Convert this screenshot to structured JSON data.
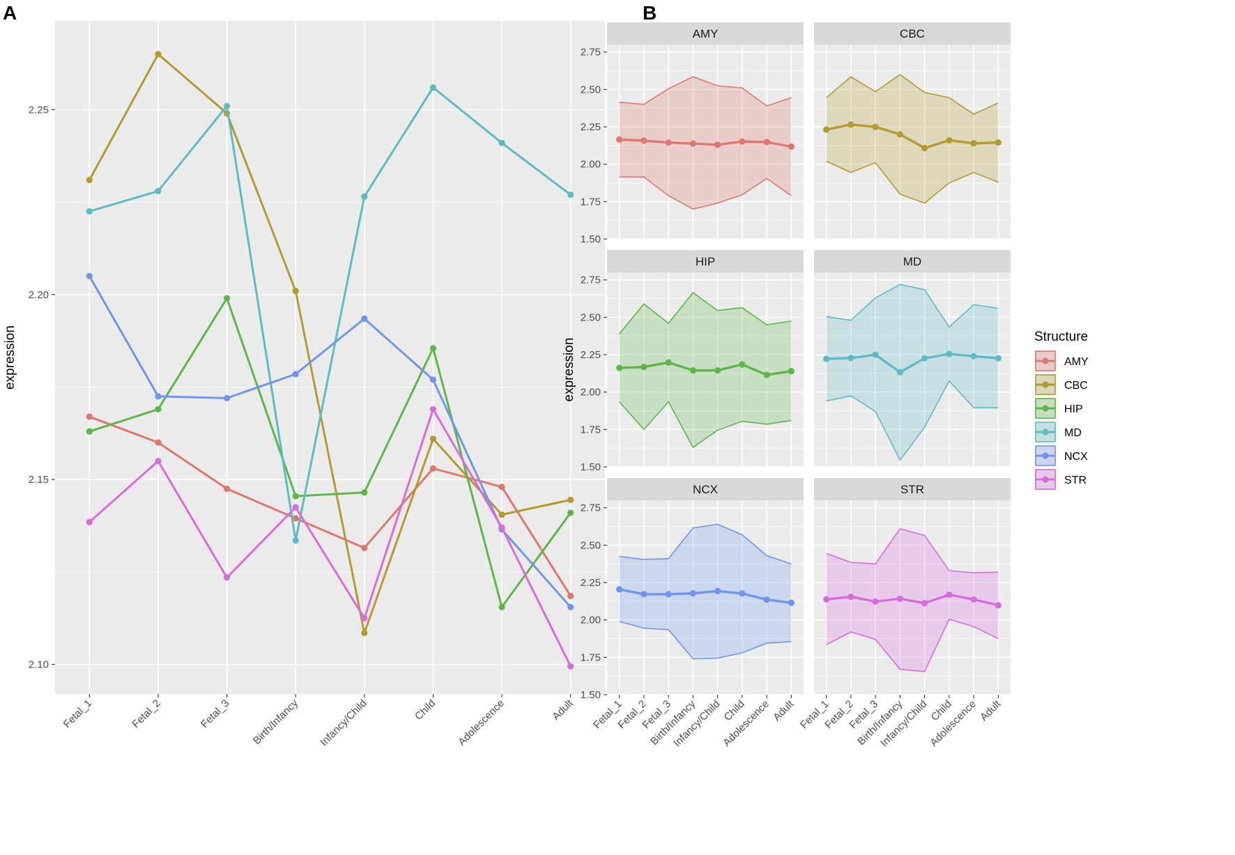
{
  "colors": {
    "AMY": "#E0766D",
    "CBC": "#B39B2C",
    "HIP": "#5CB846",
    "MD": "#5CBCC4",
    "NCX": "#6F96EE",
    "STR": "#D96BDE"
  },
  "chart_data": [
    {
      "panel_label": "A",
      "type": "line",
      "title": "",
      "xlabel": "",
      "ylabel": "expression",
      "categories": [
        "Fetal_1",
        "Fetal_2",
        "Fetal_3",
        "Birth/Infancy",
        "Infancy/Child",
        "Child",
        "Adolescence",
        "Adult"
      ],
      "ylim": [
        2.092,
        2.274
      ],
      "yticks": [
        2.1,
        2.15,
        2.2,
        2.25
      ],
      "ytick_labels": [
        "2.10",
        "2.15",
        "2.20",
        "2.25"
      ],
      "grid": true,
      "series": [
        {
          "name": "AMY",
          "values": [
            2.167,
            2.16,
            2.1475,
            2.1395,
            2.1315,
            2.153,
            2.148,
            2.1185
          ]
        },
        {
          "name": "CBC",
          "values": [
            2.231,
            2.265,
            2.249,
            2.201,
            2.1085,
            2.161,
            2.1405,
            2.1445
          ]
        },
        {
          "name": "HIP",
          "values": [
            2.163,
            2.169,
            2.199,
            2.1455,
            2.1465,
            2.1855,
            2.1155,
            2.141
          ]
        },
        {
          "name": "MD",
          "values": [
            2.2225,
            2.228,
            2.251,
            2.1335,
            2.2265,
            2.256,
            2.241,
            2.227
          ]
        },
        {
          "name": "NCX",
          "values": [
            2.205,
            2.1725,
            2.172,
            2.1785,
            2.1935,
            2.177,
            2.1365,
            2.1155
          ]
        },
        {
          "name": "STR",
          "values": [
            2.1385,
            2.155,
            2.1235,
            2.1425,
            2.1125,
            2.169,
            2.137,
            2.0995
          ]
        }
      ]
    },
    {
      "panel_label": "B",
      "type": "area",
      "title": "",
      "xlabel": "",
      "ylabel": "expression",
      "categories": [
        "Fetal_1",
        "Fetal_2",
        "Fetal_3",
        "Birth/Infancy",
        "Infancy/Child",
        "Child",
        "Adolescence",
        "Adult"
      ],
      "ylim": [
        1.5,
        2.8
      ],
      "yticks": [
        1.5,
        1.75,
        2.0,
        2.25,
        2.5,
        2.75
      ],
      "ytick_labels": [
        "1.50",
        "1.75",
        "2.00",
        "2.25",
        "2.50",
        "2.75"
      ],
      "grid": true,
      "legend": {
        "title": "Structure",
        "position": "right",
        "entries": [
          "AMY",
          "CBC",
          "HIP",
          "MD",
          "NCX",
          "STR"
        ]
      },
      "facets": [
        {
          "name": "AMY",
          "mean": [
            2.165,
            2.158,
            2.145,
            2.138,
            2.13,
            2.152,
            2.148,
            2.118
          ],
          "upper": [
            2.415,
            2.4,
            2.505,
            2.585,
            2.525,
            2.51,
            2.39,
            2.445
          ],
          "lower": [
            1.915,
            1.915,
            1.79,
            1.7,
            1.74,
            1.795,
            1.905,
            1.79
          ]
        },
        {
          "name": "CBC",
          "mean": [
            2.232,
            2.265,
            2.25,
            2.2,
            2.108,
            2.16,
            2.14,
            2.145
          ],
          "upper": [
            2.445,
            2.585,
            2.485,
            2.6,
            2.48,
            2.445,
            2.335,
            2.41
          ],
          "lower": [
            2.02,
            1.945,
            2.01,
            1.8,
            1.74,
            1.875,
            1.945,
            1.88
          ]
        },
        {
          "name": "HIP",
          "mean": [
            2.162,
            2.168,
            2.198,
            2.145,
            2.145,
            2.185,
            2.115,
            2.14
          ],
          "upper": [
            2.39,
            2.59,
            2.46,
            2.665,
            2.545,
            2.565,
            2.45,
            2.475
          ],
          "lower": [
            1.935,
            1.75,
            1.935,
            1.63,
            1.745,
            1.805,
            1.785,
            1.81
          ]
        },
        {
          "name": "MD",
          "mean": [
            2.222,
            2.228,
            2.25,
            2.133,
            2.226,
            2.255,
            2.24,
            2.226
          ],
          "upper": [
            2.505,
            2.48,
            2.63,
            2.72,
            2.685,
            2.435,
            2.585,
            2.56
          ],
          "lower": [
            1.94,
            1.975,
            1.87,
            1.545,
            1.765,
            2.075,
            1.895,
            1.895
          ]
        },
        {
          "name": "NCX",
          "mean": [
            2.205,
            2.172,
            2.172,
            2.178,
            2.193,
            2.177,
            2.136,
            2.115
          ],
          "upper": [
            2.425,
            2.405,
            2.41,
            2.615,
            2.64,
            2.57,
            2.43,
            2.375
          ],
          "lower": [
            1.99,
            1.945,
            1.935,
            1.74,
            1.745,
            1.78,
            1.845,
            1.855
          ]
        },
        {
          "name": "STR",
          "mean": [
            2.138,
            2.155,
            2.123,
            2.142,
            2.112,
            2.169,
            2.137,
            2.099
          ],
          "upper": [
            2.445,
            2.385,
            2.375,
            2.61,
            2.565,
            2.33,
            2.315,
            2.32
          ],
          "lower": [
            1.835,
            1.92,
            1.87,
            1.67,
            1.655,
            2.005,
            1.955,
            1.875
          ]
        }
      ]
    }
  ]
}
